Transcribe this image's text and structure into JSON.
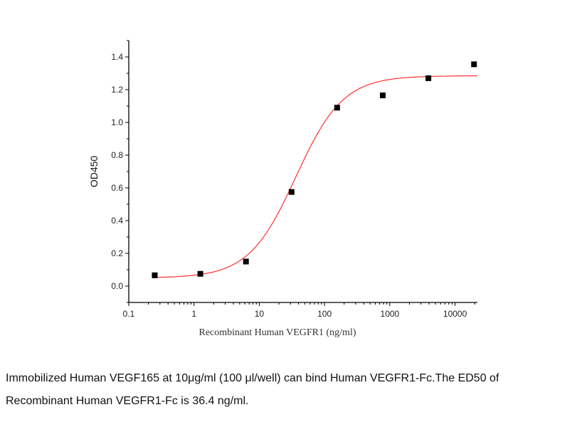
{
  "chart_data": {
    "type": "scatter",
    "xlabel": "Recombinant Human VEGFR1 (ng/ml)",
    "ylabel": "OD450",
    "xscale": "log",
    "xlim": [
      0.1,
      22000
    ],
    "ylim": [
      -0.1,
      1.5
    ],
    "xticks": [
      0.1,
      1,
      10,
      100,
      1000,
      10000
    ],
    "xtick_labels": [
      "0.1",
      "1",
      "10",
      "100",
      "1000",
      "10000"
    ],
    "yticks": [
      0.0,
      0.2,
      0.4,
      0.6,
      0.8,
      1.0,
      1.2,
      1.4
    ],
    "ytick_labels": [
      "0.0",
      "0.2",
      "0.4",
      "0.6",
      "0.8",
      "1.0",
      "1.2",
      "1.4"
    ],
    "grid": false,
    "points": {
      "x": [
        0.25,
        1.25,
        6.25,
        31.25,
        156,
        781,
        3906,
        19531
      ],
      "y": [
        0.066,
        0.075,
        0.15,
        0.575,
        1.09,
        1.165,
        1.27,
        1.355
      ],
      "color": "#000000"
    },
    "fit": {
      "model": "4PL",
      "bottom": 0.05,
      "top": 1.285,
      "ec50": 36.4,
      "hill": 1.2,
      "color": "#ff2020"
    }
  },
  "caption": "Immobilized Human VEGF165 at 10μg/ml (100 μl/well) can bind Human VEGFR1-Fc.The ED50 of Recombinant Human VEGFR1-Fc is 36.4 ng/ml."
}
